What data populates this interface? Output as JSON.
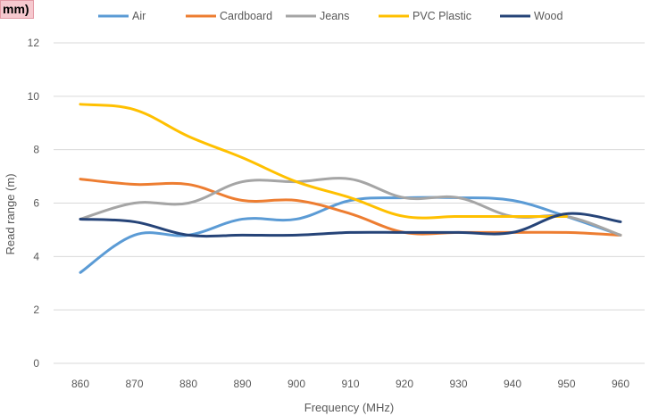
{
  "corner_tag": "mm)",
  "chart_data": {
    "type": "line",
    "xlabel": "Frequency (MHz)",
    "ylabel": "Read range (m)",
    "x": [
      860,
      870,
      880,
      890,
      900,
      910,
      920,
      930,
      940,
      950,
      960
    ],
    "ylim": [
      0,
      12
    ],
    "yticks": [
      0,
      2,
      4,
      6,
      8,
      10,
      12
    ],
    "grid": true,
    "legend_position": "top",
    "series": [
      {
        "name": "Air",
        "color": "#5b9bd5",
        "values": [
          3.4,
          4.8,
          4.8,
          5.4,
          5.4,
          6.1,
          6.2,
          6.2,
          6.1,
          5.5,
          4.8
        ]
      },
      {
        "name": "Cardboard",
        "color": "#ed7d31",
        "values": [
          6.9,
          6.7,
          6.7,
          6.1,
          6.1,
          5.6,
          4.9,
          4.9,
          4.9,
          4.9,
          4.8
        ]
      },
      {
        "name": "Jeans",
        "color": "#a5a5a5",
        "values": [
          5.4,
          6.0,
          6.0,
          6.8,
          6.8,
          6.9,
          6.2,
          6.2,
          5.5,
          5.5,
          4.8
        ]
      },
      {
        "name": "PVC Plastic",
        "color": "#ffc000",
        "values": [
          9.7,
          9.5,
          8.5,
          7.7,
          6.8,
          6.2,
          5.5,
          5.5,
          5.5,
          5.5,
          null
        ]
      },
      {
        "name": "Wood",
        "color": "#264478",
        "values": [
          5.4,
          5.3,
          4.8,
          4.8,
          4.8,
          4.9,
          4.9,
          4.9,
          4.9,
          5.6,
          5.3
        ]
      }
    ]
  }
}
